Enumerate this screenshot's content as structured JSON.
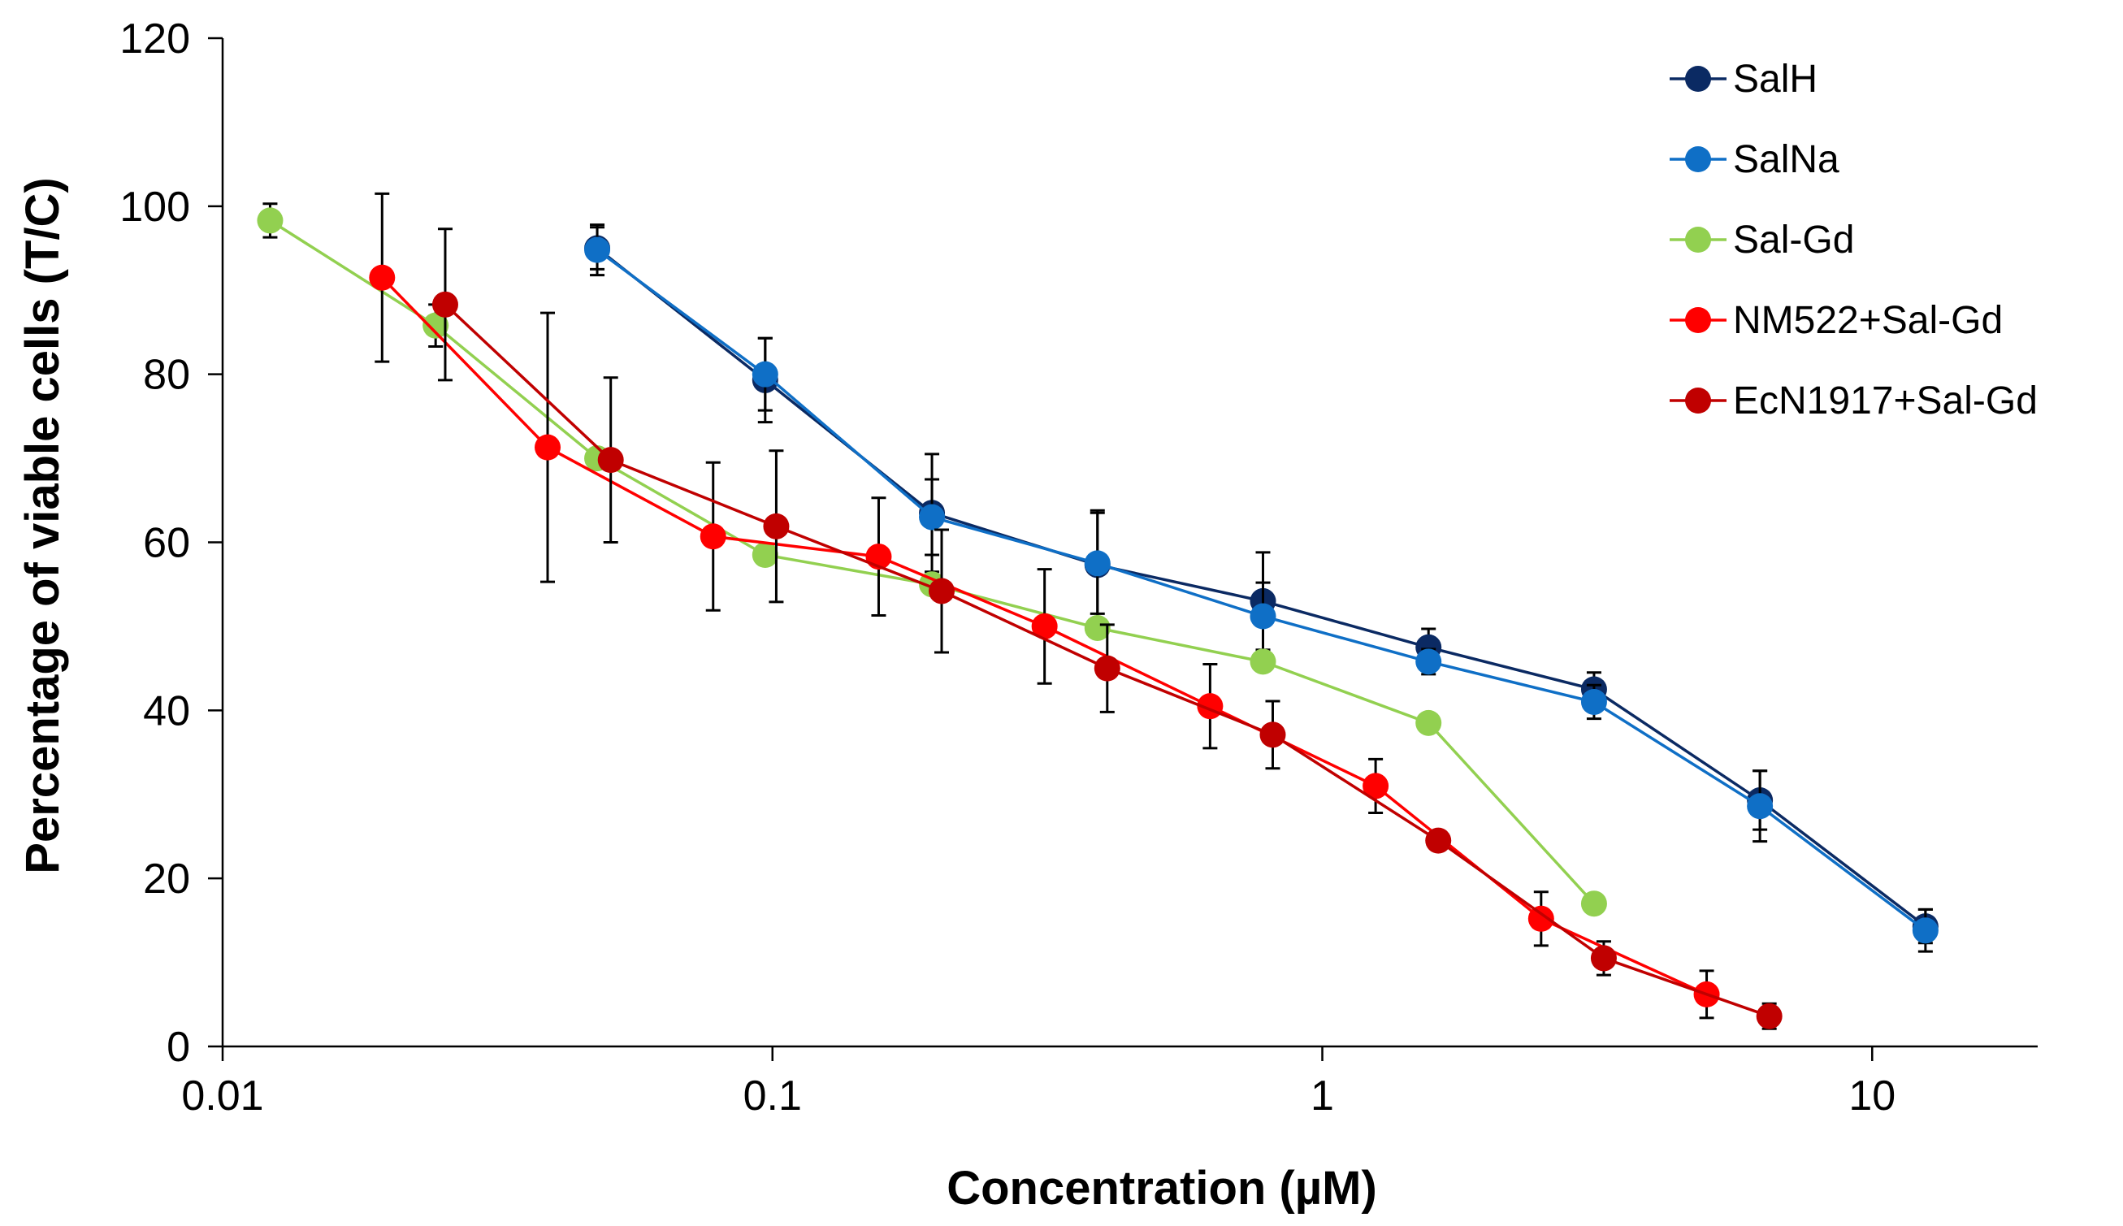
{
  "chart_data": {
    "type": "scatter",
    "title": "",
    "xlabel": "Concentration (µM)",
    "ylabel": "Percentage of viable cells (T/C)",
    "xscale": "log",
    "xlim": [
      0.01,
      20
    ],
    "ylim": [
      0,
      120
    ],
    "xticks": [
      0.01,
      0.1,
      1,
      10
    ],
    "xtick_labels": [
      "0.01",
      "0.1",
      "1",
      "10"
    ],
    "yticks": [
      0,
      20,
      40,
      60,
      80,
      100,
      120
    ],
    "ytick_labels": [
      "0",
      "20",
      "40",
      "60",
      "80",
      "100",
      "120"
    ],
    "legend_position": "top-right",
    "series": [
      {
        "name": "SalH",
        "color": "#0b2a63",
        "x": [
          0.048,
          0.097,
          0.195,
          0.39,
          0.78,
          1.56,
          3.12,
          6.25,
          12.5
        ],
        "y": [
          95.0,
          79.3,
          63.5,
          57.3,
          53.0,
          47.5,
          42.5,
          29.3,
          14.3
        ],
        "err": [
          2.5,
          5.0,
          7.0,
          6.5,
          5.8,
          2.2,
          2.0,
          3.5,
          2.0
        ]
      },
      {
        "name": "SalNa",
        "color": "#0f6fc6",
        "x": [
          0.048,
          0.097,
          0.195,
          0.39,
          0.78,
          1.56,
          3.12,
          6.25,
          12.5
        ],
        "y": [
          94.8,
          80.0,
          63.0,
          57.5,
          51.2,
          45.8,
          41.0,
          28.6,
          13.8
        ],
        "err": [
          3.0,
          4.3,
          4.5,
          6.0,
          4.0,
          1.5,
          2.0,
          4.2,
          2.5
        ]
      },
      {
        "name": "Sal-Gd",
        "color": "#92d050",
        "x": [
          0.0122,
          0.0244,
          0.048,
          0.097,
          0.195,
          0.39,
          0.78,
          1.56,
          3.12
        ],
        "y": [
          98.3,
          85.8,
          70.0,
          58.5,
          55.0,
          49.8,
          45.8,
          38.5,
          17.0
        ],
        "err": [
          2.0,
          2.5,
          0,
          0,
          0,
          0,
          0,
          0,
          0
        ]
      },
      {
        "name": "NM522+Sal-Gd",
        "color": "#ff0000",
        "x": [
          0.0195,
          0.039,
          0.078,
          0.156,
          0.3125,
          0.625,
          1.25,
          2.5,
          5.0
        ],
        "y": [
          91.5,
          71.3,
          60.7,
          58.3,
          50.0,
          40.5,
          31.0,
          15.2,
          6.2
        ],
        "err": [
          10.0,
          16.0,
          8.8,
          7.0,
          6.8,
          5.0,
          3.2,
          3.2,
          2.8
        ]
      },
      {
        "name": "EcN1917+Sal-Gd",
        "color": "#c00000",
        "x": [
          0.0254,
          0.0508,
          0.1016,
          0.2031,
          0.4063,
          0.8125,
          1.625,
          3.25,
          6.5
        ],
        "y": [
          88.3,
          69.8,
          61.9,
          54.2,
          45.0,
          37.1,
          24.5,
          10.5,
          3.6
        ],
        "err": [
          9.0,
          9.8,
          9.0,
          7.3,
          5.2,
          4.0,
          0,
          2.0,
          1.5
        ]
      }
    ]
  }
}
